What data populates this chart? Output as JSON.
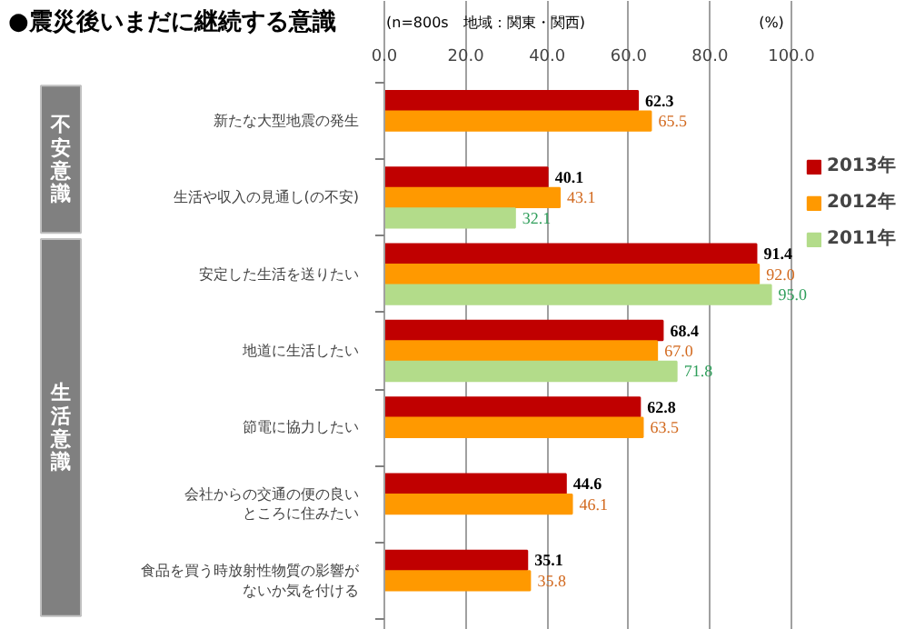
{
  "chart_data": {
    "type": "bar",
    "orientation": "horizontal",
    "title": "●震災後いまだに継続する意識",
    "subtitle": "(n=800s　地域：関東・関西)",
    "xlabel": "(%)",
    "categories": [
      "新たな大型地震の発生",
      "生活や収入の見通し(の不安)",
      "安定した生活を送りたい",
      "地道に生活したい",
      "節電に協力したい",
      "会社からの交通の便の良いところに住みたい",
      "食品を買う時放射性物質の影響がないか気を付ける"
    ],
    "series": [
      {
        "name": "2013年",
        "color": "#c00000",
        "values": [
          62.3,
          40.1,
          91.4,
          68.4,
          62.8,
          44.6,
          35.1
        ],
        "value_labels": [
          "62.3",
          "40.1",
          "91.4",
          "68.4",
          "62.8",
          "44.6",
          "35.1"
        ]
      },
      {
        "name": "2012年",
        "color": "#ff9900",
        "values": [
          65.5,
          43.1,
          92.0,
          67.0,
          63.5,
          46.1,
          35.8
        ],
        "value_labels": [
          "65.5",
          "43.1",
          "92.0",
          "67.0",
          "63.5",
          "46.1",
          "35.8"
        ]
      },
      {
        "name": "2011年",
        "color": "#b3dc8a",
        "values": [
          null,
          32.1,
          95.0,
          71.8,
          null,
          null,
          null
        ],
        "value_labels": [
          null,
          "32.1",
          "95.0",
          "71.8",
          null,
          null,
          null
        ]
      }
    ],
    "annotations": [
      "不安意識",
      "生活意識"
    ],
    "xlim": [
      0,
      100
    ],
    "xticks": [
      {
        "value": 0,
        "label": "0.0"
      },
      {
        "value": 20,
        "label": "20.0"
      },
      {
        "value": 40,
        "label": "40.0"
      },
      {
        "value": 60,
        "label": "60.0"
      },
      {
        "value": 80,
        "label": "80.0"
      },
      {
        "value": 100,
        "label": "100.0"
      }
    ],
    "grid": "x",
    "legend": "right"
  }
}
